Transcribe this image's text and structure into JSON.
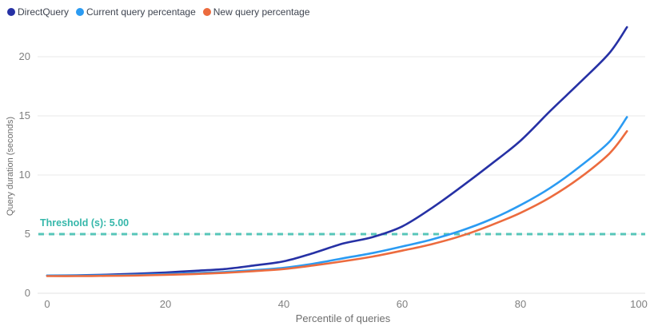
{
  "legend": {
    "items": [
      {
        "label": "DirectQuery",
        "color": "#2631a5"
      },
      {
        "label": "Current query percentage",
        "color": "#2b9bf2"
      },
      {
        "label": "New query percentage",
        "color": "#ec6b3e"
      }
    ]
  },
  "axes": {
    "x_title": "Percentile of queries",
    "y_title": "Query duration (seconds)"
  },
  "threshold": {
    "label": "Threshold (s): 5.00",
    "value": 5,
    "line_color": "#57c6b9",
    "text_color": "#35b7aa"
  },
  "colors": {
    "grid": "#e9e9e9",
    "axis_line": "#e3e3e3",
    "tick_text": "#7f7f7f"
  },
  "chart_data": {
    "type": "line",
    "title": "",
    "xlabel": "Percentile of queries",
    "ylabel": "Query duration (seconds)",
    "xlim": [
      0,
      100
    ],
    "ylim": [
      0,
      22.5
    ],
    "xticks": [
      0,
      20,
      40,
      60,
      80,
      100
    ],
    "yticks": [
      0,
      5,
      10,
      15,
      20
    ],
    "grid": "horizontal",
    "legend_position": "top-left",
    "threshold": {
      "label": "Threshold (s): 5.00",
      "y": 5.0
    },
    "x": [
      0,
      5,
      10,
      15,
      20,
      25,
      30,
      35,
      40,
      45,
      50,
      55,
      60,
      65,
      70,
      75,
      80,
      85,
      90,
      95,
      98
    ],
    "series": [
      {
        "name": "DirectQuery",
        "color": "#2631a5",
        "values": [
          1.5,
          1.52,
          1.57,
          1.65,
          1.76,
          1.9,
          2.05,
          2.35,
          2.7,
          3.4,
          4.2,
          4.75,
          5.65,
          7.2,
          9.0,
          10.9,
          12.9,
          15.4,
          17.8,
          20.3,
          22.5
        ]
      },
      {
        "name": "Current query percentage",
        "color": "#2b9bf2",
        "values": [
          1.5,
          1.5,
          1.52,
          1.56,
          1.62,
          1.7,
          1.8,
          1.95,
          2.15,
          2.5,
          2.95,
          3.4,
          3.95,
          4.55,
          5.3,
          6.25,
          7.45,
          8.9,
          10.7,
          12.8,
          14.9
        ]
      },
      {
        "name": "New query percentage",
        "color": "#ec6b3e",
        "values": [
          1.45,
          1.45,
          1.47,
          1.5,
          1.56,
          1.63,
          1.73,
          1.87,
          2.05,
          2.35,
          2.7,
          3.1,
          3.6,
          4.15,
          4.85,
          5.75,
          6.8,
          8.1,
          9.75,
          11.8,
          13.7
        ]
      }
    ]
  }
}
